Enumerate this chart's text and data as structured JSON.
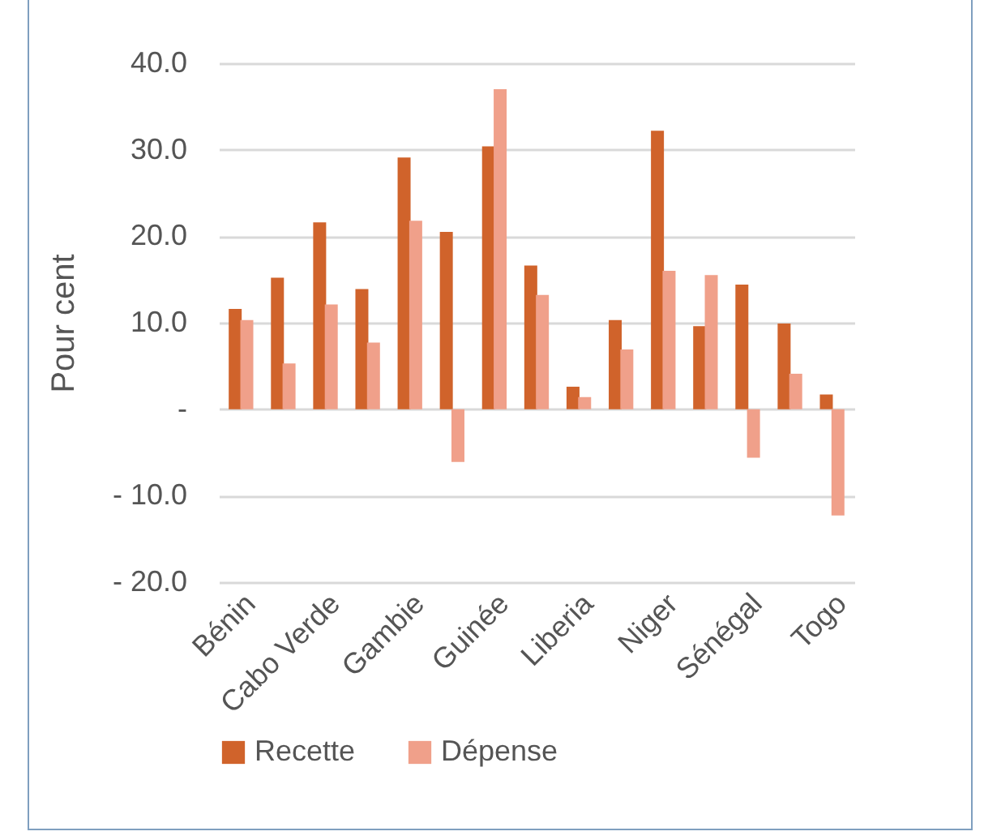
{
  "chart_data": {
    "type": "bar",
    "ylabel": "Pour cent",
    "categories": [
      "Bénin",
      null,
      "Cabo Verde",
      null,
      "Gambie",
      null,
      "Guinée",
      null,
      "Liberia",
      null,
      "Niger",
      null,
      "Sénégal",
      null,
      "Togo"
    ],
    "series": [
      {
        "name": "Recette",
        "color": "#d0632b",
        "values": [
          11.6,
          15.2,
          21.6,
          13.9,
          29.1,
          20.5,
          30.4,
          16.6,
          2.6,
          10.3,
          32.2,
          9.6,
          14.4,
          9.9,
          1.7
        ]
      },
      {
        "name": "Dépense",
        "color": "#f0a08a",
        "values": [
          10.3,
          5.3,
          12.1,
          7.7,
          21.8,
          -6.1,
          37.0,
          13.2,
          1.4,
          6.9,
          16.0,
          15.5,
          -5.6,
          4.1,
          -12.3
        ]
      }
    ],
    "ylim": [
      -20,
      40
    ],
    "yticks": [
      {
        "value": -20,
        "label": "- 20.0"
      },
      {
        "value": -10,
        "label": "- 10.0"
      },
      {
        "value": 0,
        "label": "-"
      },
      {
        "value": 10,
        "label": "10.0"
      },
      {
        "value": 20,
        "label": "20.0"
      },
      {
        "value": 30,
        "label": "30.0"
      },
      {
        "value": 40,
        "label": "40.0"
      }
    ],
    "grid": "y",
    "legend": "bottom"
  }
}
